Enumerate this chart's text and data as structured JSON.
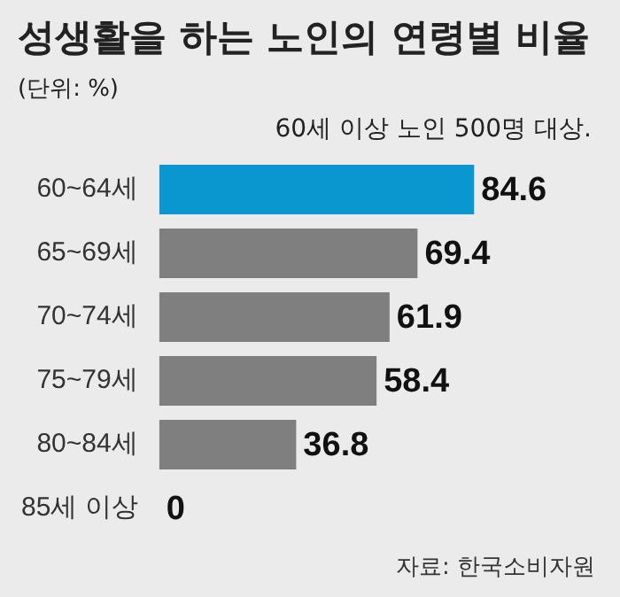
{
  "chart_data": {
    "type": "bar",
    "orientation": "horizontal",
    "title": "성생활을 하는 노인의 연령별 비율",
    "subtitle": "60세 이상 노인 500명 대상.",
    "annotations": [
      "(단위: %)",
      "자료: 한국소비자원"
    ],
    "categories": [
      "60~64세",
      "65~69세",
      "70~74세",
      "75~79세",
      "80~84세",
      "85세 이상"
    ],
    "values": [
      84.6,
      69.4,
      61.9,
      58.4,
      36.8,
      0
    ],
    "colors": [
      "#0a97cf",
      "#7f7f7f",
      "#7f7f7f",
      "#7f7f7f",
      "#7f7f7f",
      "#7f7f7f"
    ],
    "data_labels": true,
    "legend": false
  }
}
